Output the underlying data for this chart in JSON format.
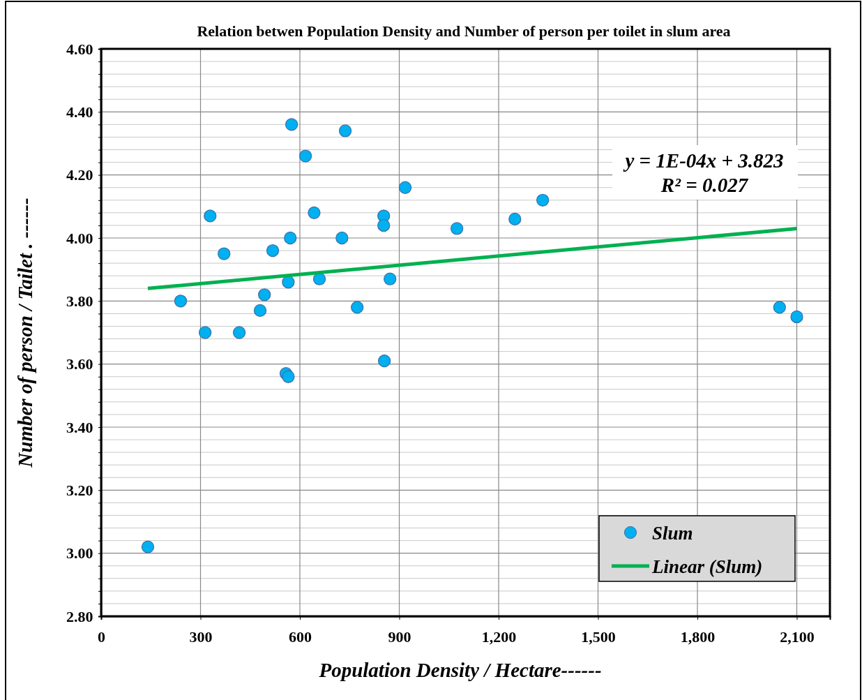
{
  "chart_data": {
    "type": "scatter",
    "title": "Relation betwen Population Density and Number of person  per toilet in slum area",
    "xlabel": "Population Density /  Hectare------",
    "ylabel": "Number of  person   / Tailet .  ------",
    "xlim": [
      0,
      2200
    ],
    "xticks": [
      {
        "value": 0,
        "label": "0"
      },
      {
        "value": 300,
        "label": "300"
      },
      {
        "value": 600,
        "label": "600"
      },
      {
        "value": 900,
        "label": "900"
      },
      {
        "value": 1200,
        "label": "1,200"
      },
      {
        "value": 1500,
        "label": "1,500"
      },
      {
        "value": 1800,
        "label": "1,800"
      },
      {
        "value": 2100,
        "label": "2,100"
      }
    ],
    "ylim": [
      2.8,
      4.6
    ],
    "yticks": [
      {
        "value": 2.8,
        "label": "2.80"
      },
      {
        "value": 2.84,
        "label": null
      },
      {
        "value": 2.88,
        "label": null
      },
      {
        "value": 2.92,
        "label": null
      },
      {
        "value": 2.96,
        "label": null
      },
      {
        "value": 3.0,
        "label": "3.00"
      },
      {
        "value": 3.04,
        "label": null
      },
      {
        "value": 3.08,
        "label": null
      },
      {
        "value": 3.12,
        "label": null
      },
      {
        "value": 3.16,
        "label": null
      },
      {
        "value": 3.2,
        "label": "3.20"
      },
      {
        "value": 3.24,
        "label": null
      },
      {
        "value": 3.28,
        "label": null
      },
      {
        "value": 3.32,
        "label": null
      },
      {
        "value": 3.36,
        "label": null
      },
      {
        "value": 3.4,
        "label": "3.40"
      },
      {
        "value": 3.44,
        "label": null
      },
      {
        "value": 3.48,
        "label": null
      },
      {
        "value": 3.52,
        "label": null
      },
      {
        "value": 3.56,
        "label": null
      },
      {
        "value": 3.6,
        "label": "3.60"
      },
      {
        "value": 3.64,
        "label": null
      },
      {
        "value": 3.68,
        "label": null
      },
      {
        "value": 3.72,
        "label": null
      },
      {
        "value": 3.76,
        "label": null
      },
      {
        "value": 3.8,
        "label": "3.80"
      },
      {
        "value": 3.84,
        "label": null
      },
      {
        "value": 3.88,
        "label": null
      },
      {
        "value": 3.92,
        "label": null
      },
      {
        "value": 3.96,
        "label": null
      },
      {
        "value": 4.0,
        "label": "4.00"
      },
      {
        "value": 4.04,
        "label": null
      },
      {
        "value": 4.08,
        "label": null
      },
      {
        "value": 4.12,
        "label": null
      },
      {
        "value": 4.16,
        "label": null
      },
      {
        "value": 4.2,
        "label": "4.20"
      },
      {
        "value": 4.24,
        "label": null
      },
      {
        "value": 4.28,
        "label": null
      },
      {
        "value": 4.32,
        "label": null
      },
      {
        "value": 4.36,
        "label": null
      },
      {
        "value": 4.4,
        "label": "4.40"
      },
      {
        "value": 4.44,
        "label": null
      },
      {
        "value": 4.48,
        "label": null
      },
      {
        "value": 4.52,
        "label": null
      },
      {
        "value": 4.56,
        "label": null
      },
      {
        "value": 4.6,
        "label": "4.60"
      }
    ],
    "grid": true,
    "legend": "bottom right",
    "annotations": [
      "y = 1E-04x + 3.823\nR² = 0.027"
    ],
    "series": [
      {
        "name": "Slum",
        "color": "#00b0f0",
        "marker": "circle",
        "x": [
          141,
          240,
          314,
          329,
          371,
          417,
          480,
          493,
          518,
          558,
          565,
          565,
          571,
          575,
          617,
          643,
          659,
          727,
          737,
          773,
          853,
          853,
          855,
          872,
          918,
          1074,
          1249,
          1333,
          2048,
          2100
        ],
        "values": [
          3.02,
          3.8,
          3.7,
          4.07,
          3.95,
          3.7,
          3.77,
          3.82,
          3.96,
          3.57,
          3.56,
          3.86,
          4.0,
          4.36,
          4.26,
          4.08,
          3.87,
          4.0,
          4.34,
          3.78,
          4.07,
          4.04,
          3.61,
          3.87,
          4.16,
          4.03,
          4.06,
          4.12,
          3.78,
          3.75
        ]
      },
      {
        "name": "Linear (Slum)",
        "type": "line",
        "color": "#00b050",
        "line_style": "solid",
        "marker": "none",
        "x": [
          141,
          2100
        ],
        "values": [
          3.84,
          4.03
        ]
      }
    ]
  }
}
